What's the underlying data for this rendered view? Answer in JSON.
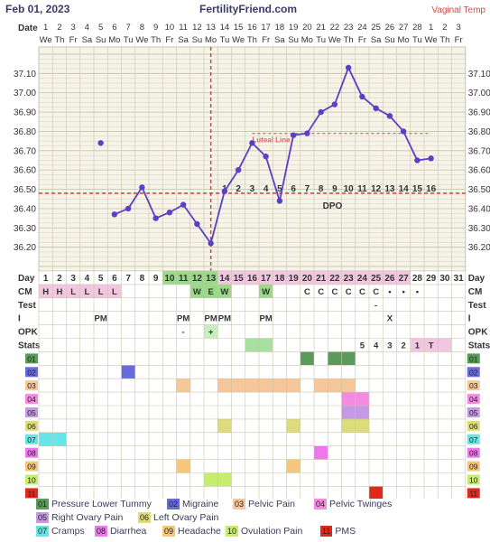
{
  "header": {
    "date": "Feb 01, 2023",
    "site": "FertilityFriend.com",
    "method": "Vaginal Temp"
  },
  "colors": {
    "grid_bg": "#f6f4e9",
    "grid_line": "#c9c6ad",
    "temp_line": "#5b3fc4",
    "coverline": "#d94040",
    "ovulation_line": "#d94040",
    "fertile_label": "#e86070"
  },
  "chart_data": {
    "type": "line",
    "title": "",
    "xlabel": "",
    "ylabel": "",
    "ylim": [
      36.1,
      37.2
    ],
    "yticks": [
      "37.10",
      "37.00",
      "36.90",
      "36.80",
      "36.70",
      "36.60",
      "36.50",
      "36.40",
      "36.30",
      "36.20"
    ],
    "grid": true,
    "date_row_label": "Date",
    "dates": [
      "1",
      "2",
      "3",
      "4",
      "5",
      "6",
      "7",
      "8",
      "9",
      "10",
      "11",
      "12",
      "13",
      "14",
      "15",
      "16",
      "17",
      "18",
      "19",
      "20",
      "21",
      "22",
      "23",
      "24",
      "25",
      "26",
      "27",
      "28",
      "1",
      "2",
      "3"
    ],
    "weekdays": [
      "We",
      "Th",
      "Fr",
      "Sa",
      "Su",
      "Mo",
      "Tu",
      "We",
      "Th",
      "Fr",
      "Sa",
      "Su",
      "Mo",
      "Tu",
      "We",
      "Th",
      "Fr",
      "Sa",
      "Su",
      "Mo",
      "Tu",
      "We",
      "Th",
      "Fr",
      "Sa",
      "Su",
      "Mo",
      "Tu",
      "We",
      "Th",
      "Fr"
    ],
    "series": [
      {
        "values": [
          null,
          null,
          null,
          null,
          36.74,
          36.37,
          36.4,
          36.51,
          36.35,
          36.38,
          36.42,
          36.32,
          36.22,
          36.49,
          36.6,
          36.74,
          36.67,
          36.44,
          36.78,
          36.79,
          36.9,
          36.94,
          37.13,
          36.98,
          36.92,
          36.88,
          36.8,
          36.65,
          36.66,
          null,
          null
        ],
        "connected": [
          false,
          false,
          false,
          false,
          false,
          true,
          true,
          true,
          true,
          true,
          true,
          true,
          true,
          true,
          true,
          true,
          true,
          true,
          true,
          true,
          true,
          true,
          true,
          true,
          true,
          true,
          true,
          true,
          true,
          false,
          false
        ]
      }
    ],
    "coverline": 36.48,
    "ovulation_day": 13,
    "fertile_window": {
      "from_day": 16,
      "to_day": 29,
      "temp": 36.79,
      "label": "Luteal Line"
    },
    "dpo_label": "DPO",
    "dpo": [
      "1",
      "2",
      "3",
      "4",
      "5",
      "6",
      "7",
      "8",
      "9",
      "10",
      "11",
      "12",
      "13",
      "14",
      "15",
      "16"
    ],
    "dpo_start_day": 14
  },
  "lower": {
    "day_label": "Day",
    "days": [
      "1",
      "2",
      "3",
      "4",
      "5",
      "6",
      "7",
      "8",
      "9",
      "10",
      "11",
      "12",
      "13",
      "14",
      "15",
      "16",
      "17",
      "18",
      "19",
      "20",
      "21",
      "22",
      "23",
      "24",
      "25",
      "26",
      "27",
      "28",
      "29",
      "30",
      "31"
    ],
    "rows": [
      {
        "label": "CM",
        "cells": {
          "1": "H",
          "2": "H",
          "3": "L",
          "4": "L",
          "5": "L",
          "6": "L",
          "12": "W",
          "13": "E",
          "14": "W",
          "17": "W",
          "20": "C",
          "21": "C",
          "22": "C",
          "23": "C",
          "24": "C",
          "25": "C",
          "26": "•",
          "27": "•",
          "28": "•"
        }
      },
      {
        "label": "Test",
        "cells": {
          "25": "-"
        }
      },
      {
        "label": "I",
        "cells": {
          "5": "PM",
          "11": "PM",
          "13": "PM",
          "14": "PM",
          "17": "PM",
          "26": "X"
        }
      },
      {
        "label": "OPK",
        "cells": {
          "11": "-",
          "13": "+"
        }
      },
      {
        "label": "Stats",
        "cells": {
          "24": "5",
          "25": "4",
          "26": "3",
          "27": "2",
          "28": "1",
          "29": "T"
        }
      }
    ],
    "symptoms": [
      {
        "code": "01",
        "name": "Pressure Lower Tummy",
        "color": "#5a9a5a",
        "days": [
          20,
          22,
          23
        ]
      },
      {
        "code": "02",
        "name": "Migraine",
        "color": "#6a6ae0",
        "days": [
          7
        ]
      },
      {
        "code": "03",
        "name": "Pelvic Pain",
        "color": "#f5c79a",
        "days": [
          11,
          14,
          15,
          16,
          17,
          18,
          19,
          21,
          22,
          23
        ]
      },
      {
        "code": "04",
        "name": "Pelvic Twinges",
        "color": "#f58ae0",
        "days": [
          23,
          24
        ]
      },
      {
        "code": "05",
        "name": "Right Ovary Pain",
        "color": "#c49ae6",
        "days": [
          23,
          24
        ]
      },
      {
        "code": "06",
        "name": "Left Ovary Pain",
        "color": "#dcdc7a",
        "days": [
          14,
          19,
          23,
          24
        ]
      },
      {
        "code": "07",
        "name": "Cramps",
        "color": "#66e6e6",
        "days": [
          1,
          2
        ]
      },
      {
        "code": "08",
        "name": "Diarrhea",
        "color": "#ee77ee",
        "days": [
          21
        ]
      },
      {
        "code": "09",
        "name": "Headache",
        "color": "#f5c77a",
        "days": [
          11,
          19
        ]
      },
      {
        "code": "10",
        "name": "Ovulation Pain",
        "color": "#c6ee6a",
        "days": [
          13,
          14
        ]
      },
      {
        "code": "11",
        "name": "PMS",
        "color": "#dd2a1a",
        "days": [
          25
        ]
      }
    ]
  },
  "highlights": {
    "cm_pink": "#f2c6e0",
    "cm_green": "#9ad88a",
    "day_green": "#9ad88a",
    "day_pink": "#f2c6e0",
    "stats_green": "#a8e0a0",
    "stats_pink": "#f2c6e0",
    "opk_green": "#c8eec0"
  },
  "legend_rows": [
    [
      0,
      1,
      2,
      3
    ],
    [
      4,
      5
    ],
    [
      6,
      7,
      8,
      9,
      10
    ]
  ]
}
